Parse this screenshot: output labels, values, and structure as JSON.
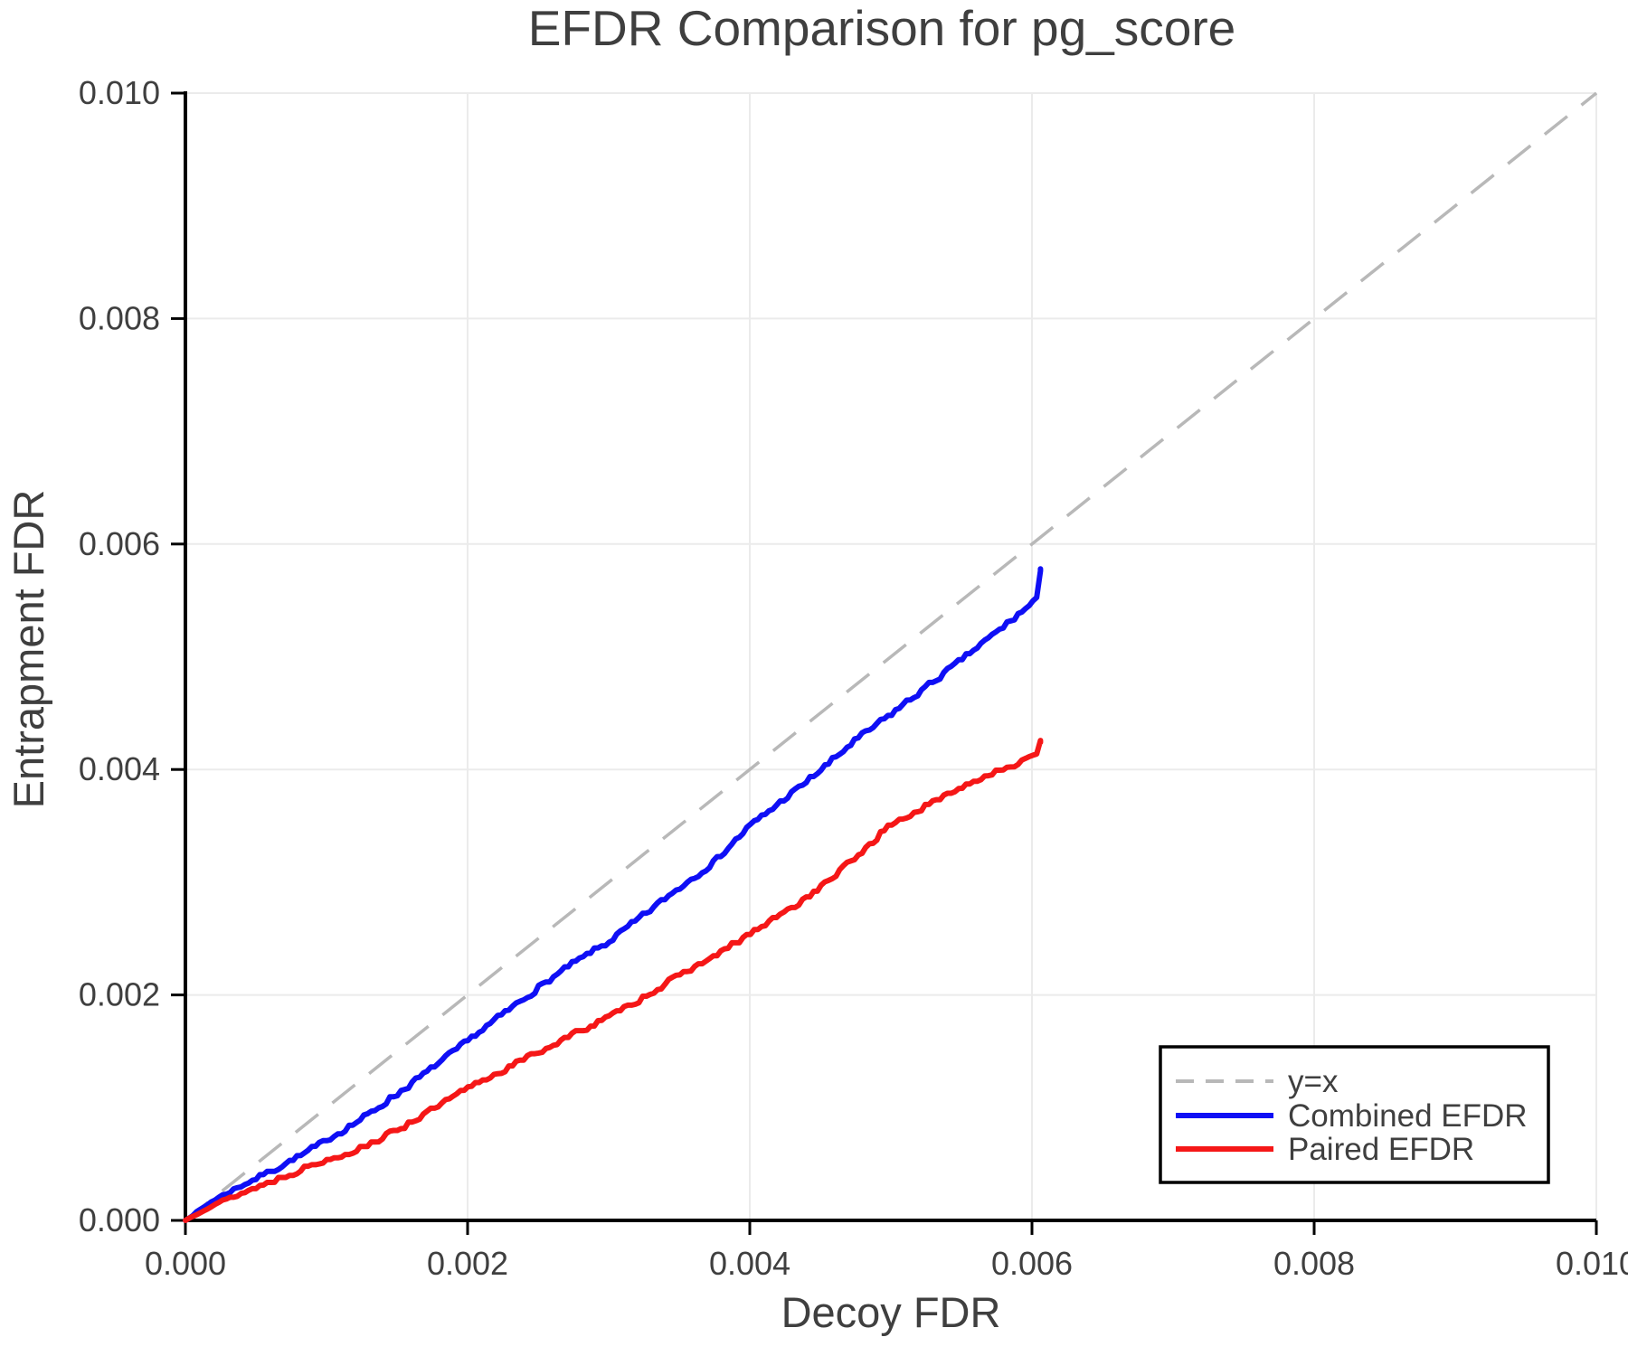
{
  "chart_data": {
    "type": "line",
    "title": "EFDR Comparison for pg_score",
    "xlabel": "Decoy FDR",
    "ylabel": "Entrapment FDR",
    "xlim": [
      0.0,
      0.01
    ],
    "ylim": [
      0.0,
      0.01
    ],
    "grid": true,
    "legend_position": "lower right",
    "x_ticks": [
      {
        "value": 0.0,
        "label": "0.000"
      },
      {
        "value": 0.002,
        "label": "0.002"
      },
      {
        "value": 0.004,
        "label": "0.004"
      },
      {
        "value": 0.006,
        "label": "0.006"
      },
      {
        "value": 0.008,
        "label": "0.008"
      },
      {
        "value": 0.01,
        "label": "0.010"
      }
    ],
    "y_ticks": [
      {
        "value": 0.0,
        "label": "0.000"
      },
      {
        "value": 0.002,
        "label": "0.002"
      },
      {
        "value": 0.004,
        "label": "0.004"
      },
      {
        "value": 0.006,
        "label": "0.006"
      },
      {
        "value": 0.008,
        "label": "0.008"
      },
      {
        "value": 0.01,
        "label": "0.010"
      }
    ],
    "reference_line": {
      "label": "y=x",
      "style": "dashed",
      "color": "#b8b8b8",
      "from": [
        0.0,
        0.0
      ],
      "to": [
        0.01,
        0.01
      ]
    },
    "series": [
      {
        "name": "Combined EFDR",
        "color": "#0f0ff5",
        "x": [
          0,
          0.0002,
          0.0004,
          0.0006,
          0.0008,
          0.001,
          0.00125,
          0.0015,
          0.00175,
          0.002,
          0.00225,
          0.0025,
          0.00275,
          0.003,
          0.00325,
          0.0035,
          0.00375,
          0.004,
          0.00425,
          0.0045,
          0.00475,
          0.005,
          0.00525,
          0.0055,
          0.00575,
          0.006,
          0.00604,
          0.00606
        ],
        "y": [
          0,
          0.00018,
          0.00031,
          0.00043,
          0.00056,
          0.00071,
          0.0009,
          0.00112,
          0.00135,
          0.00159,
          0.00183,
          0.00206,
          0.00228,
          0.00247,
          0.00271,
          0.00295,
          0.00318,
          0.0035,
          0.00374,
          0.00399,
          0.00426,
          0.00449,
          0.00473,
          0.00497,
          0.00522,
          0.00547,
          0.00551,
          0.00578
        ]
      },
      {
        "name": "Paired EFDR",
        "color": "#f51717",
        "x": [
          0,
          0.0002,
          0.0004,
          0.0006,
          0.0008,
          0.001,
          0.00125,
          0.0015,
          0.00175,
          0.002,
          0.00225,
          0.0025,
          0.00275,
          0.003,
          0.00325,
          0.0035,
          0.00375,
          0.004,
          0.00425,
          0.0045,
          0.00475,
          0.005,
          0.00525,
          0.0055,
          0.00575,
          0.006,
          0.00604,
          0.00606
        ],
        "y": [
          0,
          0.00014,
          0.00024,
          0.00034,
          0.00044,
          0.00053,
          0.00064,
          0.0008,
          0.00098,
          0.00117,
          0.00133,
          0.00149,
          0.00165,
          0.0018,
          0.00198,
          0.00217,
          0.00234,
          0.00254,
          0.00273,
          0.00295,
          0.00322,
          0.00351,
          0.00367,
          0.00384,
          0.00399,
          0.0041,
          0.00412,
          0.00424
        ]
      }
    ],
    "colors": {
      "text": "#3f3f3f",
      "axis": "#000000",
      "grid": "#ebebeb",
      "background": "#ffffff"
    }
  }
}
